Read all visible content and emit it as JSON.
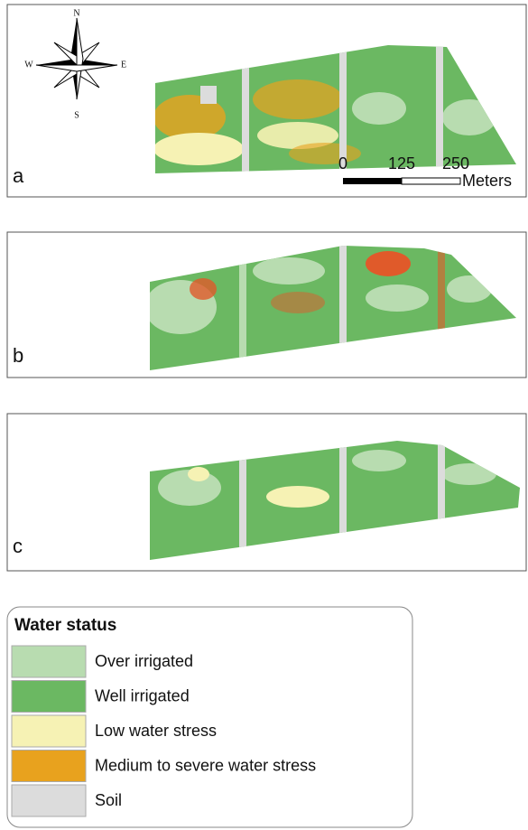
{
  "panels": [
    {
      "label": "a"
    },
    {
      "label": "b"
    },
    {
      "label": "c"
    }
  ],
  "compass": {
    "north": "N",
    "south": "S",
    "east": "E",
    "west": "W"
  },
  "scale_bar": {
    "labels": [
      "0",
      "125",
      "250"
    ],
    "unit": "Meters"
  },
  "legend": {
    "title": "Water status",
    "items": [
      {
        "label": "Over irrigated",
        "color": "#b8dcb0"
      },
      {
        "label": "Well irrigated",
        "color": "#6bb862"
      },
      {
        "label": "Low water stress",
        "color": "#f6f2b4"
      },
      {
        "label": "Medium to severe water stress",
        "color": "#e8a21e"
      },
      {
        "label": "Soil",
        "color": "#dcdcdc"
      }
    ]
  }
}
